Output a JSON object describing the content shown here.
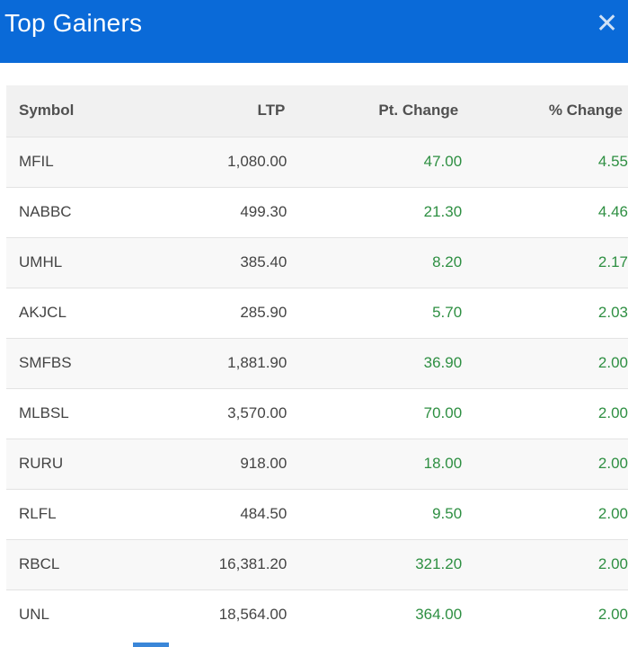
{
  "modal": {
    "title": "Top Gainers",
    "close_icon": "close-icon",
    "header_color": "#0a6ad8"
  },
  "table": {
    "columns": [
      "Symbol",
      "LTP",
      "Pt. Change",
      "% Change"
    ],
    "rows": [
      {
        "symbol": "MFIL",
        "ltp": "1,080.00",
        "pt_change": "47.00",
        "pct_change": "4.55"
      },
      {
        "symbol": "NABBC",
        "ltp": "499.30",
        "pt_change": "21.30",
        "pct_change": "4.46"
      },
      {
        "symbol": "UMHL",
        "ltp": "385.40",
        "pt_change": "8.20",
        "pct_change": "2.17"
      },
      {
        "symbol": "AKJCL",
        "ltp": "285.90",
        "pt_change": "5.70",
        "pct_change": "2.03"
      },
      {
        "symbol": "SMFBS",
        "ltp": "1,881.90",
        "pt_change": "36.90",
        "pct_change": "2.00"
      },
      {
        "symbol": "MLBSL",
        "ltp": "3,570.00",
        "pt_change": "70.00",
        "pct_change": "2.00"
      },
      {
        "symbol": "RURU",
        "ltp": "918.00",
        "pt_change": "18.00",
        "pct_change": "2.00"
      },
      {
        "symbol": "RLFL",
        "ltp": "484.50",
        "pt_change": "9.50",
        "pct_change": "2.00"
      },
      {
        "symbol": "RBCL",
        "ltp": "16,381.20",
        "pt_change": "321.20",
        "pct_change": "2.00"
      },
      {
        "symbol": "UNL",
        "ltp": "18,564.00",
        "pt_change": "364.00",
        "pct_change": "2.00"
      }
    ],
    "gain_color": "#2e8f42"
  }
}
